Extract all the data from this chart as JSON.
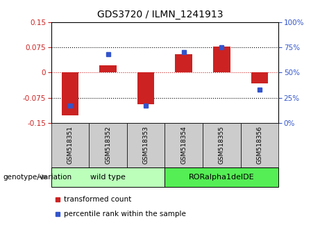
{
  "title": "GDS3720 / ILMN_1241913",
  "samples": [
    "GSM518351",
    "GSM518352",
    "GSM518353",
    "GSM518354",
    "GSM518355",
    "GSM518356"
  ],
  "red_values": [
    -0.127,
    0.022,
    -0.095,
    0.055,
    0.078,
    -0.032
  ],
  "blue_values": [
    17,
    68,
    17,
    70,
    75,
    33
  ],
  "ylim_left": [
    -0.15,
    0.15
  ],
  "ylim_right": [
    0,
    100
  ],
  "yticks_left": [
    -0.15,
    -0.075,
    0,
    0.075,
    0.15
  ],
  "yticks_right": [
    0,
    25,
    50,
    75,
    100
  ],
  "red_color": "#cc2222",
  "blue_color": "#3355cc",
  "bar_width": 0.45,
  "group1_label": "wild type",
  "group2_label": "RORalpha1delDE",
  "group1_color": "#bbffbb",
  "group2_color": "#55ee55",
  "group_bg_color": "#cccccc",
  "legend_red": "transformed count",
  "legend_blue": "percentile rank within the sample",
  "genotype_label": "genotype/variation",
  "fig_width": 4.61,
  "fig_height": 3.54,
  "fig_dpi": 100
}
